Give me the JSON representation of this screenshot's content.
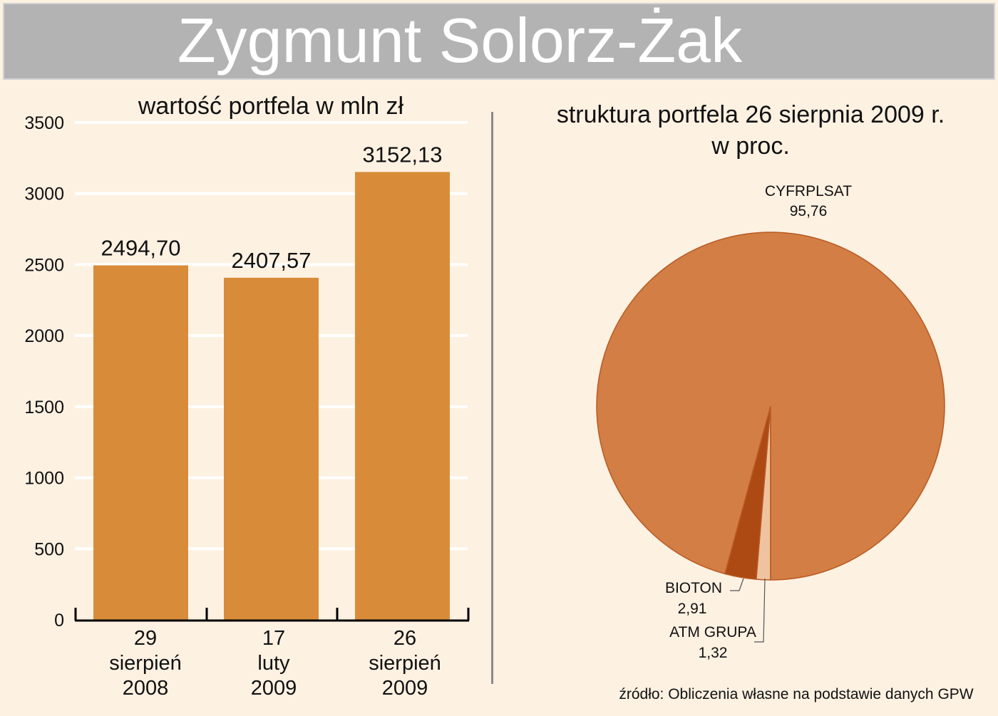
{
  "header": {
    "title": "Zygmunt Solorz-Żak"
  },
  "colors": {
    "header_bg": "#b3b3b3",
    "background": "#fdf1e2",
    "bar": "#d88c3a",
    "pie_cyfrpl": "#d37e45",
    "pie_bioton": "#ad4a14",
    "pie_atm": "#f0c3a0"
  },
  "source": "źródło: Obliczenia własne na podstawie danych GPW",
  "chart_data": [
    {
      "type": "bar",
      "title": "wartość portfela w mln zł",
      "categories": [
        "29 sierpień 2008",
        "17 luty 2009",
        "26 sierpień 2009"
      ],
      "category_lines": [
        [
          "29",
          "sierpień",
          "2008"
        ],
        [
          "17",
          "luty",
          "2009"
        ],
        [
          "26",
          "sierpień",
          "2009"
        ]
      ],
      "values": [
        2494.7,
        2407.57,
        3152.13
      ],
      "value_labels": [
        "2494,70",
        "2407,57",
        "3152,13"
      ],
      "yticks": [
        "0",
        "500",
        "1000",
        "1500",
        "2000",
        "2500",
        "3000",
        "3500"
      ],
      "ylim": [
        0,
        3500
      ],
      "xlabel": "",
      "ylabel": "",
      "grid": true
    },
    {
      "type": "pie",
      "title": "struktura portfela 26 sierpnia 2009 r.",
      "subtitle": "w proc.",
      "labels": [
        "CYFRPLSAT",
        "BIOTON",
        "ATM GRUPA"
      ],
      "values": [
        95.76,
        2.91,
        1.32
      ],
      "value_labels": [
        "95,76",
        "2,91",
        "1,32"
      ]
    }
  ]
}
